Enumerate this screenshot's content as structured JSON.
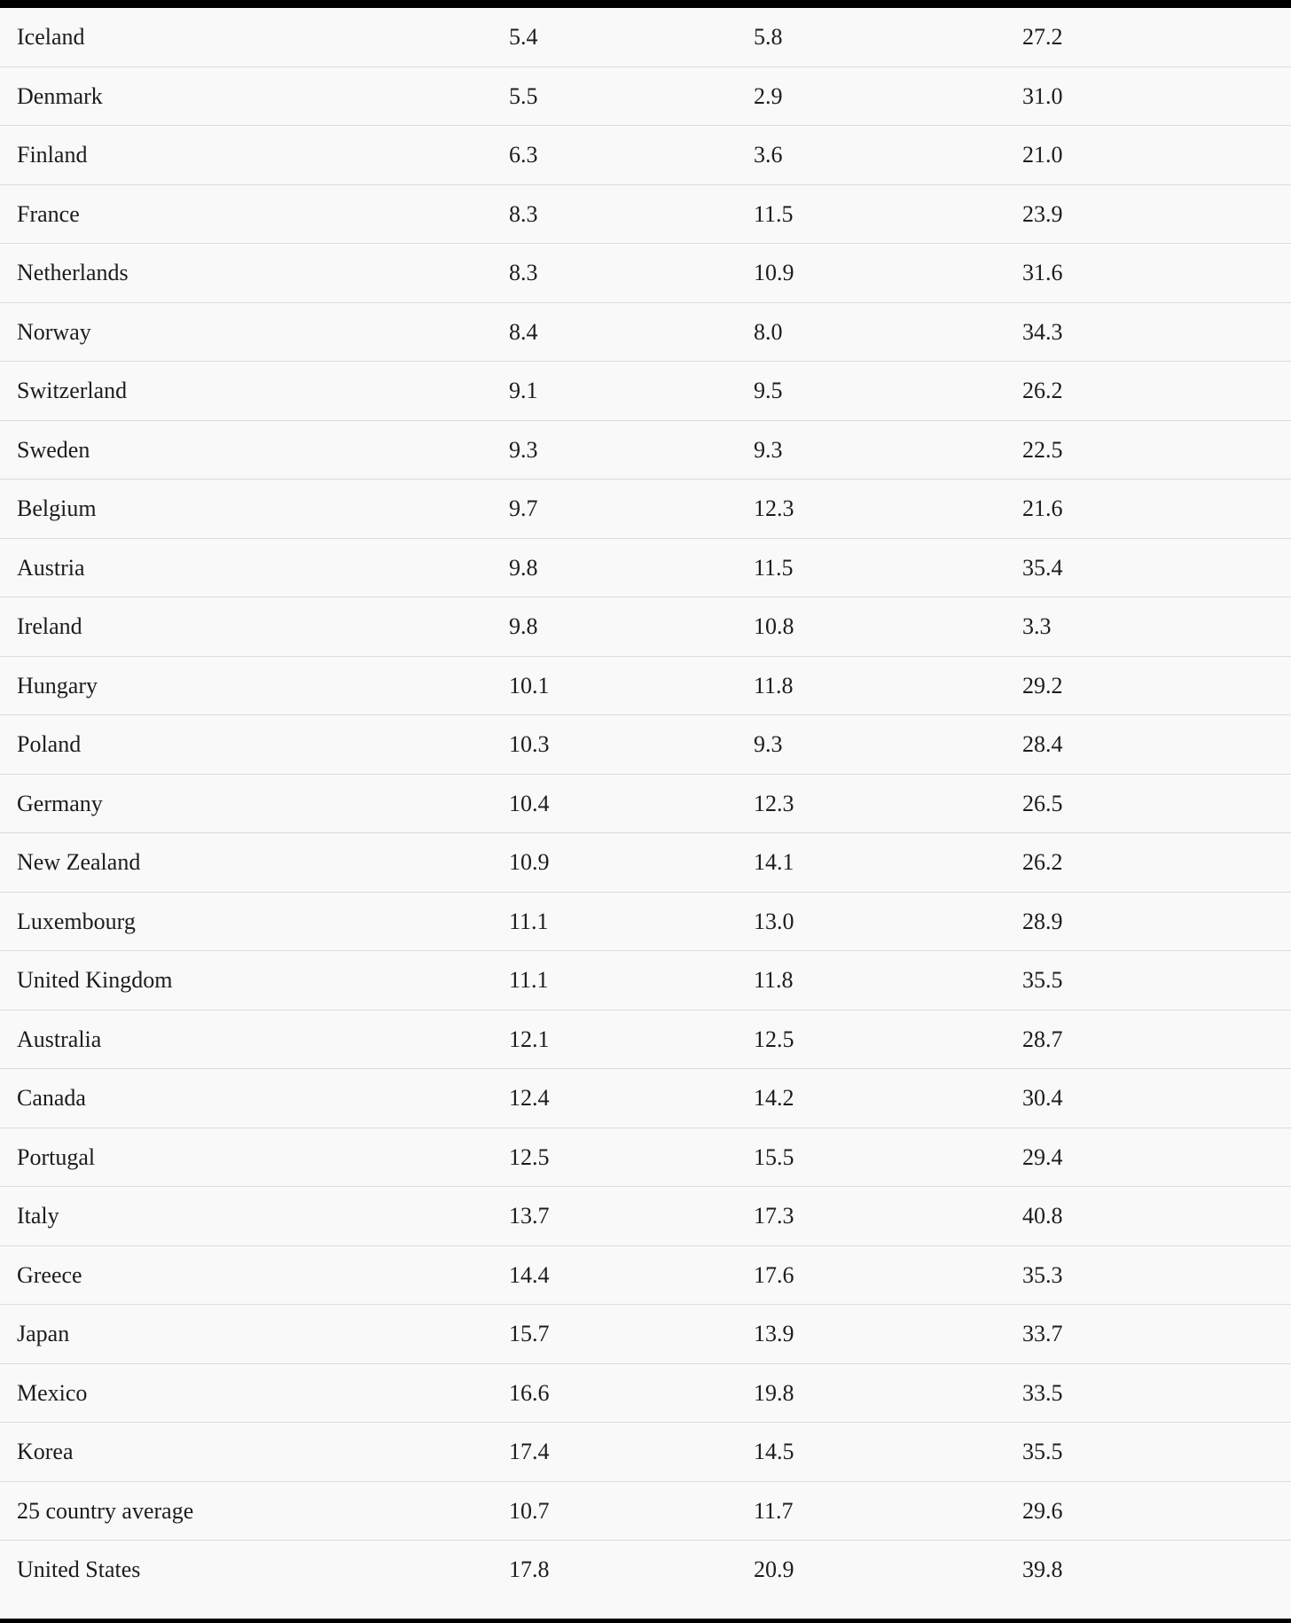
{
  "table": {
    "rows": [
      [
        "Iceland",
        "5.4",
        "5.8",
        "27.2"
      ],
      [
        "Denmark",
        "5.5",
        "2.9",
        "31.0"
      ],
      [
        "Finland",
        "6.3",
        "3.6",
        "21.0"
      ],
      [
        "France",
        "8.3",
        "11.5",
        "23.9"
      ],
      [
        "Netherlands",
        "8.3",
        "10.9",
        "31.6"
      ],
      [
        "Norway",
        "8.4",
        "8.0",
        "34.3"
      ],
      [
        "Switzerland",
        "9.1",
        "9.5",
        "26.2"
      ],
      [
        "Sweden",
        "9.3",
        "9.3",
        "22.5"
      ],
      [
        "Belgium",
        "9.7",
        "12.3",
        "21.6"
      ],
      [
        "Austria",
        "9.8",
        "11.5",
        "35.4"
      ],
      [
        "Ireland",
        "9.8",
        "10.8",
        "3.3"
      ],
      [
        "Hungary",
        "10.1",
        "11.8",
        "29.2"
      ],
      [
        "Poland",
        "10.3",
        "9.3",
        "28.4"
      ],
      [
        "Germany",
        "10.4",
        "12.3",
        "26.5"
      ],
      [
        "New Zealand",
        "10.9",
        "14.1",
        "26.2"
      ],
      [
        "Luxembourg",
        "11.1",
        "13.0",
        "28.9"
      ],
      [
        "United Kingdom",
        "11.1",
        "11.8",
        "35.5"
      ],
      [
        "Australia",
        "12.1",
        "12.5",
        "28.7"
      ],
      [
        "Canada",
        "12.4",
        "14.2",
        "30.4"
      ],
      [
        "Portugal",
        "12.5",
        "15.5",
        "29.4"
      ],
      [
        "Italy",
        "13.7",
        "17.3",
        "40.8"
      ],
      [
        "Greece",
        "14.4",
        "17.6",
        "35.3"
      ],
      [
        "Japan",
        "15.7",
        "13.9",
        "33.7"
      ],
      [
        "Mexico",
        "16.6",
        "19.8",
        "33.5"
      ],
      [
        "Korea",
        "17.4",
        "14.5",
        "35.5"
      ],
      [
        "25 country average",
        "10.7",
        "11.7",
        "29.6"
      ],
      [
        "United States",
        "17.8",
        "20.9",
        "39.8"
      ]
    ]
  },
  "colors": {
    "background": "#f9f9f9",
    "rule": "#000000",
    "row_divider": "#dcdcdc",
    "text": "#1c1c1c"
  }
}
